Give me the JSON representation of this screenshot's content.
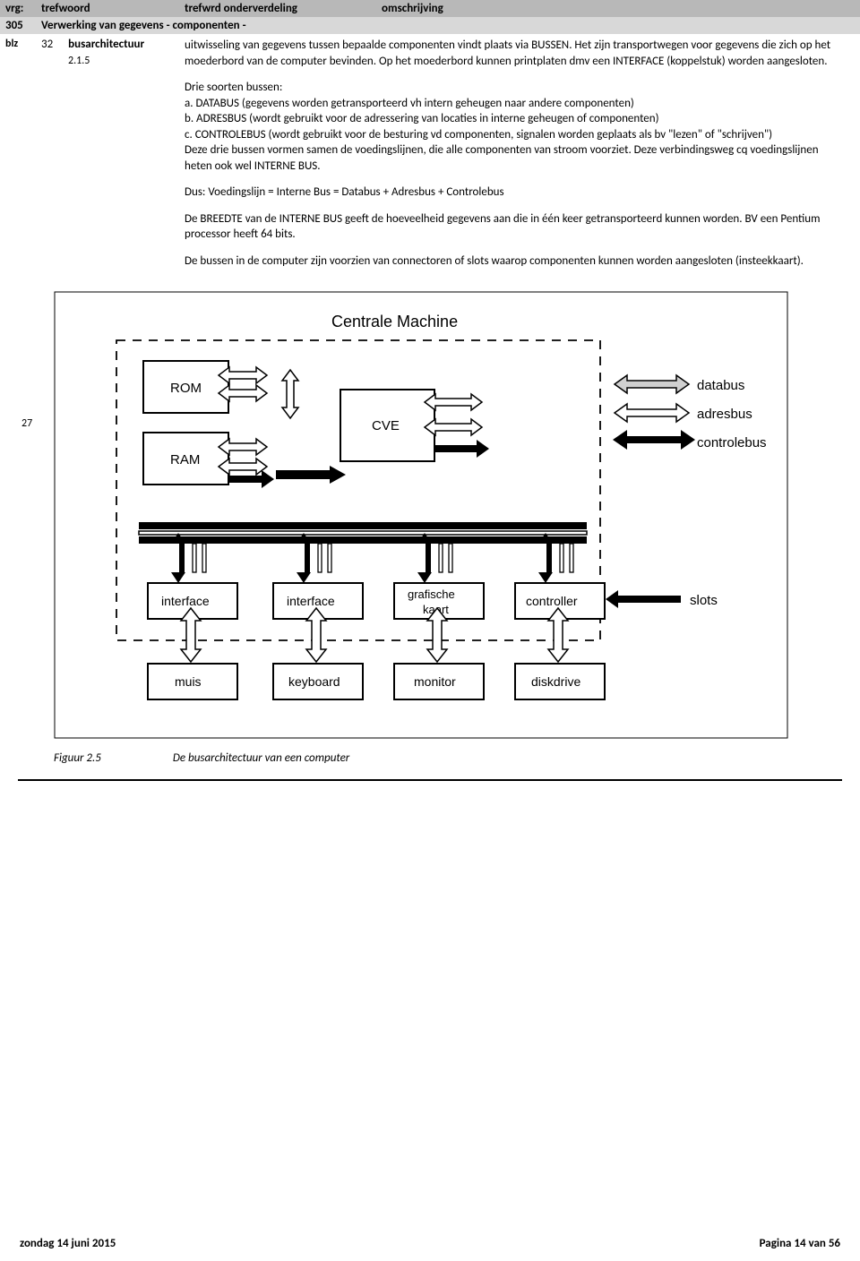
{
  "header": {
    "vrg": "vrg:",
    "trefwoord": "trefwoord",
    "trefwrd_ond": "trefwrd onderverdeling",
    "omschrijving": "omschrijving"
  },
  "subheader": {
    "num": "305",
    "title": "Verwerking van gegevens - componenten -"
  },
  "left": {
    "blz": "blz",
    "blz_num": "32",
    "para_num": "2.1.5",
    "trefwoord": "busarchitectuur",
    "side_num": "27"
  },
  "omschr": {
    "p1": "uitwisseling van gegevens tussen bepaalde componenten vindt plaats via BUSSEN. Het zijn transportwegen voor gegevens die zich op het moederbord van de computer bevinden. Op het moederbord kunnen printplaten dmv een INTERFACE (koppelstuk) worden aangesloten.",
    "p2a": "Drie soorten bussen:",
    "p2b": "a. DATABUS (gegevens worden getransporteerd vh intern geheugen naar andere componenten)",
    "p2c": "b. ADRESBUS (wordt gebruikt voor de adressering van locaties in interne geheugen of componenten)",
    "p2d": "c. CONTROLEBUS (wordt gebruikt voor de besturing vd componenten, signalen worden geplaats als bv \"lezen\" of \"schrijven\")",
    "p2e": "Deze drie bussen vormen samen de voedingslijnen, die alle componenten van stroom voorziet. Deze verbindingsweg cq voedingslijnen heten ook wel INTERNE BUS.",
    "p3": "Dus: Voedingslijn = Interne Bus = Databus + Adresbus + Controlebus",
    "p4": "De BREEDTE van de INTERNE BUS geeft de hoeveelheid gegevens aan die in één keer getransporteerd kunnen worden. BV een Pentium processor heeft 64 bits.",
    "p5": "De bussen in de computer zijn voorzien van connectoren of slots waarop componenten kunnen worden aangesloten (insteekkaart)."
  },
  "diagram": {
    "title": "Centrale Machine",
    "rom": "ROM",
    "ram": "RAM",
    "cve": "CVE",
    "interface1": "interface",
    "interface2": "interface",
    "grafische": "grafische",
    "kaart": "kaart",
    "controller": "controller",
    "muis": "muis",
    "keyboard": "keyboard",
    "monitor": "monitor",
    "diskdrive": "diskdrive",
    "databus": "databus",
    "adresbus": "adresbus",
    "controlebus": "controlebus",
    "slots": "slots"
  },
  "caption": {
    "fig": "Figuur 2.5",
    "text": "De busarchitectuur van een computer"
  },
  "footer": {
    "left": "zondag 14 juni 2015",
    "right": "Pagina 14 van 56"
  },
  "side_num_top": 466,
  "colors": {
    "header_bg": "#b8b8b8",
    "subheader_bg": "#d8d8d8"
  }
}
